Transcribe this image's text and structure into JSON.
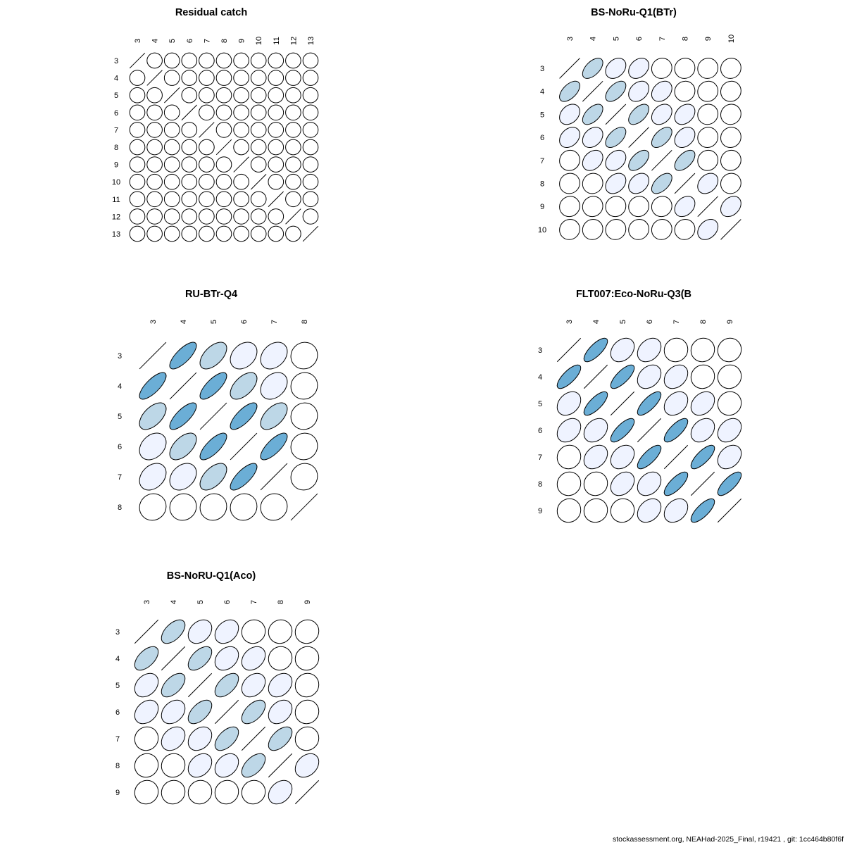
{
  "colors": {
    "zero": "#ffffff",
    "low": "#eff3ff",
    "mid": "#bdd7e7",
    "high": "#6baed6",
    "stroke": "#000000"
  },
  "footer": "stockassessment.org, NEAHad-2025_Final, r19421 , git: 1cc464b80f6f",
  "chart_data": [
    {
      "type": "heatmap",
      "subtype": "correlation-ellipse",
      "title": "Residual catch",
      "ages": [
        "3",
        "4",
        "5",
        "6",
        "7",
        "8",
        "9",
        "10",
        "11",
        "12",
        "13"
      ],
      "matrix": [
        [
          1,
          0,
          0,
          0,
          0,
          0,
          0,
          0,
          0,
          0,
          0
        ],
        [
          0,
          1,
          0,
          0,
          0,
          0,
          0,
          0,
          0,
          0,
          0
        ],
        [
          0,
          0,
          1,
          0,
          0,
          0,
          0,
          0,
          0,
          0,
          0
        ],
        [
          0,
          0,
          0,
          1,
          0,
          0,
          0,
          0,
          0,
          0,
          0
        ],
        [
          0,
          0,
          0,
          0,
          1,
          0,
          0,
          0,
          0,
          0,
          0
        ],
        [
          0,
          0,
          0,
          0,
          0,
          1,
          0,
          0,
          0,
          0,
          0
        ],
        [
          0,
          0,
          0,
          0,
          0,
          0,
          1,
          0,
          0,
          0,
          0
        ],
        [
          0,
          0,
          0,
          0,
          0,
          0,
          0,
          1,
          0,
          0,
          0
        ],
        [
          0,
          0,
          0,
          0,
          0,
          0,
          0,
          0,
          1,
          0,
          0
        ],
        [
          0,
          0,
          0,
          0,
          0,
          0,
          0,
          0,
          0,
          1,
          0
        ],
        [
          0,
          0,
          0,
          0,
          0,
          0,
          0,
          0,
          0,
          0,
          1
        ]
      ]
    },
    {
      "type": "heatmap",
      "subtype": "correlation-ellipse",
      "title": "BS-NoRu-Q1(BTr)",
      "ages": [
        "3",
        "4",
        "5",
        "6",
        "7",
        "8",
        "9",
        "10"
      ],
      "matrix": [
        [
          1,
          0.55,
          0.3,
          0.3,
          0.05,
          0.05,
          0.05,
          0.05
        ],
        [
          0.55,
          1,
          0.55,
          0.3,
          0.3,
          0.05,
          0.05,
          0.05
        ],
        [
          0.3,
          0.55,
          1,
          0.55,
          0.3,
          0.3,
          0.05,
          0.05
        ],
        [
          0.3,
          0.3,
          0.55,
          1,
          0.55,
          0.3,
          0.05,
          0.05
        ],
        [
          0.05,
          0.3,
          0.3,
          0.55,
          1,
          0.55,
          0.05,
          0.05
        ],
        [
          0.05,
          0.05,
          0.3,
          0.3,
          0.55,
          1,
          0.3,
          0.05
        ],
        [
          0.05,
          0.05,
          0.05,
          0.05,
          0.05,
          0.3,
          1,
          0.3
        ],
        [
          0.05,
          0.05,
          0.05,
          0.05,
          0.05,
          0.05,
          0.3,
          1
        ]
      ]
    },
    {
      "type": "heatmap",
      "subtype": "correlation-ellipse",
      "title": "RU-BTr-Q4",
      "ages": [
        "3",
        "4",
        "5",
        "6",
        "7",
        "8"
      ],
      "matrix": [
        [
          1,
          0.75,
          0.55,
          0.3,
          0.3,
          0.05
        ],
        [
          0.75,
          1,
          0.75,
          0.55,
          0.3,
          0.05
        ],
        [
          0.55,
          0.75,
          1,
          0.75,
          0.55,
          0.05
        ],
        [
          0.3,
          0.55,
          0.75,
          1,
          0.75,
          0.05
        ],
        [
          0.3,
          0.3,
          0.55,
          0.75,
          1,
          0.05
        ],
        [
          0.05,
          0.05,
          0.05,
          0.05,
          0.05,
          1
        ]
      ]
    },
    {
      "type": "heatmap",
      "subtype": "correlation-ellipse",
      "title": "FLT007:Eco-NoRu-Q3(B",
      "ages": [
        "3",
        "4",
        "5",
        "6",
        "7",
        "8",
        "9"
      ],
      "matrix": [
        [
          1,
          0.75,
          0.3,
          0.3,
          0.05,
          0.05,
          0.05
        ],
        [
          0.75,
          1,
          0.75,
          0.3,
          0.3,
          0.05,
          0.05
        ],
        [
          0.3,
          0.75,
          1,
          0.75,
          0.3,
          0.3,
          0.05
        ],
        [
          0.3,
          0.3,
          0.75,
          1,
          0.75,
          0.3,
          0.3
        ],
        [
          0.05,
          0.3,
          0.3,
          0.75,
          1,
          0.75,
          0.3
        ],
        [
          0.05,
          0.05,
          0.3,
          0.3,
          0.75,
          1,
          0.75
        ],
        [
          0.05,
          0.05,
          0.05,
          0.3,
          0.3,
          0.75,
          1
        ]
      ]
    },
    {
      "type": "heatmap",
      "subtype": "correlation-ellipse",
      "title": "BS-NoRU-Q1(Aco)",
      "ages": [
        "3",
        "4",
        "5",
        "6",
        "7",
        "8",
        "9"
      ],
      "matrix": [
        [
          1,
          0.55,
          0.3,
          0.3,
          0.05,
          0.05,
          0.05
        ],
        [
          0.55,
          1,
          0.55,
          0.3,
          0.3,
          0.05,
          0.05
        ],
        [
          0.3,
          0.55,
          1,
          0.55,
          0.3,
          0.3,
          0.05
        ],
        [
          0.3,
          0.3,
          0.55,
          1,
          0.55,
          0.3,
          0.05
        ],
        [
          0.05,
          0.3,
          0.3,
          0.55,
          1,
          0.55,
          0.05
        ],
        [
          0.05,
          0.05,
          0.3,
          0.3,
          0.55,
          1,
          0.3
        ],
        [
          0.05,
          0.05,
          0.05,
          0.05,
          0.05,
          0.3,
          1
        ]
      ]
    }
  ]
}
